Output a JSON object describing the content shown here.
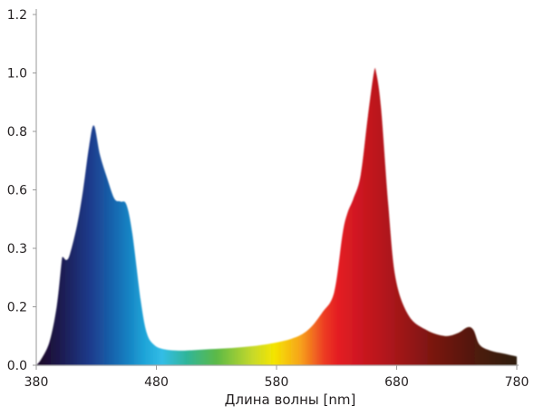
{
  "chart_data": {
    "type": "area",
    "title": "",
    "xlabel": "Длина волны [nm]",
    "ylabel": "",
    "xlim": [
      380,
      780
    ],
    "ylim": [
      0,
      1.2
    ],
    "x_ticks": [
      "380",
      "480",
      "580",
      "680",
      "780"
    ],
    "y_ticks": [
      "0.0",
      "0.2",
      "0.3",
      "0.6",
      "0.8",
      "1.0",
      "1.2"
    ],
    "grid": false,
    "fill": "spectral-gradient",
    "x": [
      380,
      384,
      391,
      397,
      401,
      402,
      405,
      408,
      414,
      419,
      424,
      428,
      433,
      439,
      445,
      450,
      455,
      460,
      467,
      472,
      478,
      486,
      501,
      524,
      546,
      569,
      592,
      606,
      618,
      628,
      635,
      639,
      644,
      650,
      656,
      661,
      663,
      667,
      673,
      679,
      690,
      705,
      720,
      731,
      739,
      744,
      749,
      758,
      769,
      780
    ],
    "y": [
      0,
      0.02,
      0.08,
      0.2,
      0.35,
      0.37,
      0.36,
      0.38,
      0.48,
      0.6,
      0.75,
      0.82,
      0.72,
      0.64,
      0.57,
      0.56,
      0.55,
      0.45,
      0.22,
      0.11,
      0.07,
      0.055,
      0.05,
      0.055,
      0.06,
      0.07,
      0.09,
      0.12,
      0.18,
      0.25,
      0.45,
      0.52,
      0.57,
      0.65,
      0.85,
      1.0,
      1.0,
      0.88,
      0.55,
      0.3,
      0.17,
      0.12,
      0.1,
      0.11,
      0.13,
      0.12,
      0.07,
      0.05,
      0.04,
      0.03
    ],
    "gradient_colors": [
      {
        "nm": 385,
        "color": "#1a0a2e"
      },
      {
        "nm": 400,
        "color": "#1c1a4f"
      },
      {
        "nm": 425,
        "color": "#1f3b8c"
      },
      {
        "nm": 450,
        "color": "#1372b8"
      },
      {
        "nm": 470,
        "color": "#1ea4d8"
      },
      {
        "nm": 485,
        "color": "#33bde6"
      },
      {
        "nm": 505,
        "color": "#2fb59a"
      },
      {
        "nm": 530,
        "color": "#5cb947"
      },
      {
        "nm": 560,
        "color": "#c6d92a"
      },
      {
        "nm": 578,
        "color": "#f4e500"
      },
      {
        "nm": 600,
        "color": "#f7a21b"
      },
      {
        "nm": 620,
        "color": "#ec3a24"
      },
      {
        "nm": 632,
        "color": "#e31b23"
      },
      {
        "nm": 670,
        "color": "#b3151c"
      },
      {
        "nm": 710,
        "color": "#7a1410"
      },
      {
        "nm": 750,
        "color": "#4a1a0e"
      },
      {
        "nm": 780,
        "color": "#2e1a10"
      }
    ]
  }
}
